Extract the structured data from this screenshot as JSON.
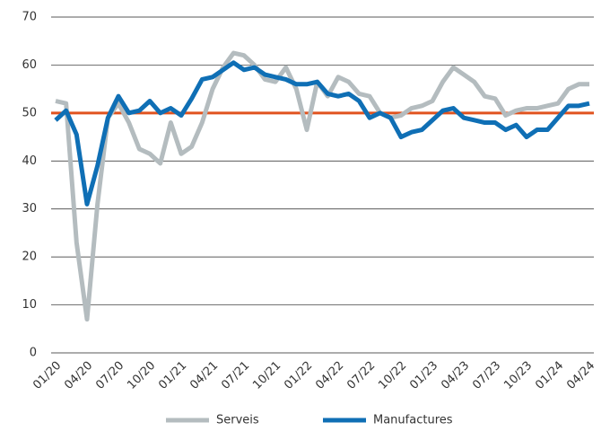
{
  "chart_data": {
    "type": "line",
    "categories": [
      "01/20",
      null,
      null,
      "04/20",
      null,
      null,
      "07/20",
      null,
      null,
      "10/20",
      null,
      null,
      "01/21",
      null,
      null,
      "04/21",
      null,
      null,
      "07/21",
      null,
      null,
      "10/21",
      null,
      null,
      "01/22",
      null,
      null,
      "04/22",
      null,
      null,
      "07/22",
      null,
      null,
      "10/22",
      null,
      null,
      "01/23",
      null,
      null,
      "04/23",
      null,
      null,
      "07/23",
      null,
      null,
      "10/23",
      null,
      null,
      "01/24",
      null,
      null,
      "04/24"
    ],
    "series": [
      {
        "name": "Serveis",
        "color": "#b4bcbf",
        "values": [
          52.5,
          52,
          23,
          7,
          31,
          49,
          52,
          48,
          42.5,
          41.5,
          39.5,
          48,
          41.5,
          43,
          48,
          55,
          59.5,
          62.5,
          62,
          60,
          57,
          56.5,
          59.5,
          55,
          46.5,
          56.5,
          53.5,
          57.5,
          56.5,
          54,
          53.5,
          50,
          49,
          49.5,
          51,
          51.5,
          52.5,
          56.5,
          59.5,
          58,
          56.5,
          53.5,
          53,
          49.5,
          50.5,
          51,
          51,
          51.5,
          52,
          55,
          56,
          56
        ]
      },
      {
        "name": "Manufactures",
        "color": "#0f6fb5",
        "values": [
          48.5,
          50.5,
          45.5,
          31,
          39,
          49,
          53.5,
          50,
          50.5,
          52.5,
          50,
          51,
          49.5,
          53,
          57,
          57.5,
          59,
          60.5,
          59,
          59.5,
          58,
          57.5,
          57,
          56,
          56,
          56.5,
          54,
          53.5,
          54,
          52.5,
          49,
          50,
          49,
          45,
          46,
          46.5,
          48.5,
          50.5,
          51,
          49,
          48.5,
          48,
          48,
          46.5,
          47.5,
          45,
          46.5,
          46.5,
          49,
          51.5,
          51.5,
          52
        ]
      }
    ],
    "reference_line": {
      "value": 50,
      "color": "#e0531f"
    },
    "ylim": [
      0,
      70
    ],
    "yticks": [
      0,
      10,
      20,
      30,
      40,
      50,
      60,
      70
    ],
    "grid": true,
    "legend": "bottom"
  }
}
